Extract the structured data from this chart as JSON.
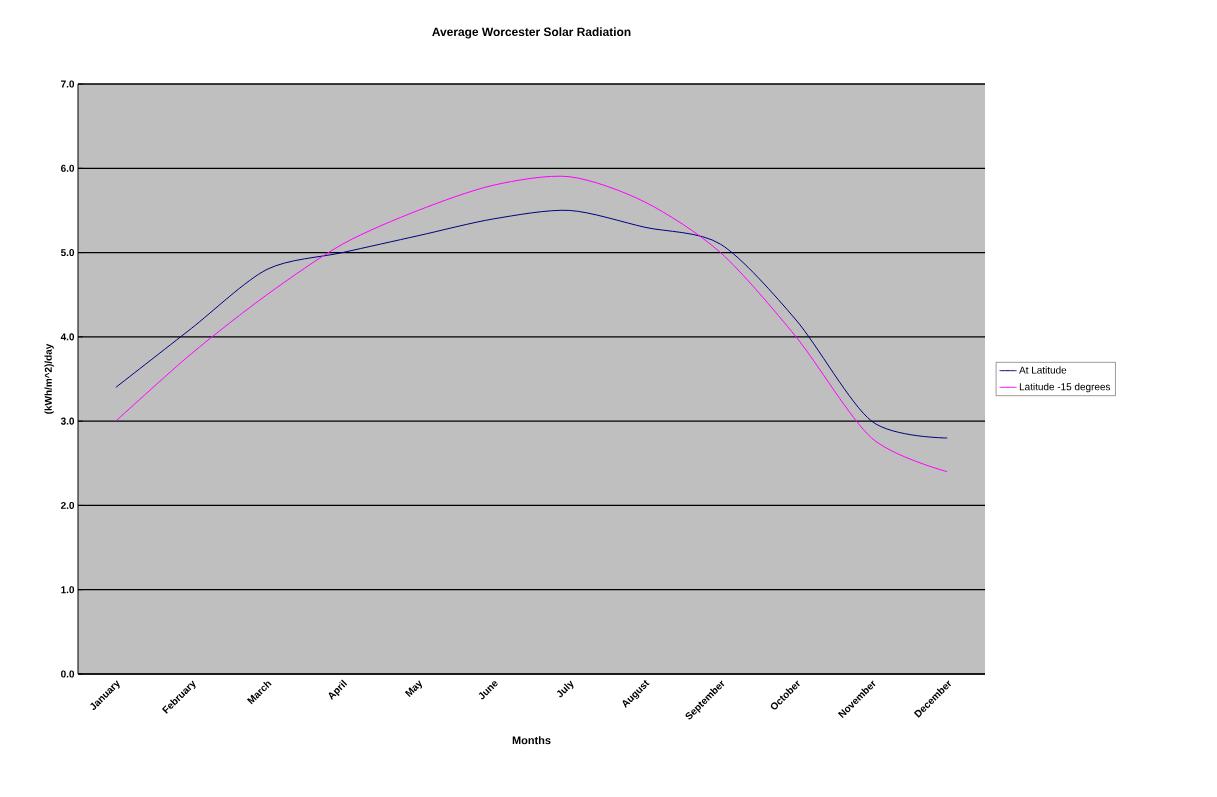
{
  "chart_data": {
    "type": "line",
    "title": "Average Worcester Solar Radiation",
    "xlabel": "Months",
    "ylabel": "(kWh/m^2)/day",
    "categories": [
      "January",
      "February",
      "March",
      "April",
      "May",
      "June",
      "July",
      "August",
      "September",
      "October",
      "November",
      "December"
    ],
    "series": [
      {
        "name": "At Latitude",
        "color": "#000080",
        "values": [
          3.4,
          4.1,
          4.8,
          5.0,
          5.2,
          5.4,
          5.5,
          5.3,
          5.1,
          4.2,
          3.0,
          2.8
        ]
      },
      {
        "name": "Latitude -15 degrees",
        "color": "#ff00ff",
        "values": [
          3.0,
          3.8,
          4.5,
          5.1,
          5.5,
          5.8,
          5.9,
          5.6,
          5.0,
          4.0,
          2.8,
          2.4
        ]
      }
    ],
    "ylim": [
      0,
      7
    ],
    "yticks": [
      {
        "value": 0,
        "label": "0.0"
      },
      {
        "value": 1,
        "label": "1.0"
      },
      {
        "value": 2,
        "label": "2.0"
      },
      {
        "value": 3,
        "label": "3.0"
      },
      {
        "value": 4,
        "label": "4.0"
      },
      {
        "value": 5,
        "label": "5.0"
      },
      {
        "value": 6,
        "label": "6.0"
      },
      {
        "value": 7,
        "label": "7.0"
      }
    ],
    "grid": "y",
    "legend": "right",
    "marker": "none",
    "line_style": "solid"
  }
}
